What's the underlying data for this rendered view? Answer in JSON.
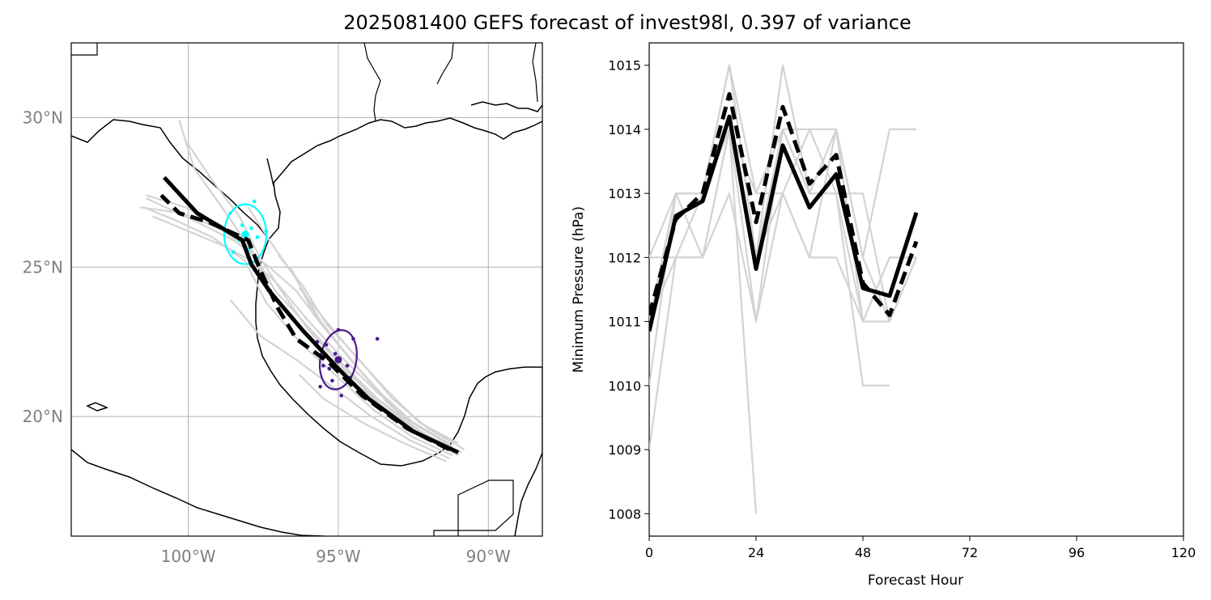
{
  "figure": {
    "title": "2025081400 GEFS forecast of invest98l, 0.397 of variance"
  },
  "chart_data": [
    {
      "type": "scatter",
      "panel": "track-map",
      "xlim": [
        -103.9,
        -88.2
      ],
      "ylim": [
        16.0,
        32.5
      ],
      "lon_ticks": [
        {
          "value": -100,
          "label": "100°W"
        },
        {
          "value": -95,
          "label": "95°W"
        },
        {
          "value": -90,
          "label": "90°W"
        }
      ],
      "lat_ticks": [
        {
          "value": 30,
          "label": "30°N"
        },
        {
          "value": 25,
          "label": "25°N"
        },
        {
          "value": 20,
          "label": "20°N"
        }
      ],
      "grid": true,
      "colors": {
        "member": "#d3d3d3",
        "mean": "#000000",
        "ellipse_early": "#00ffff",
        "ellipse_late": "#4b1a8c",
        "coast": "#000000",
        "grid": "#b0b0b0"
      },
      "members": [
        [
          [
            -91.3,
            19.0
          ],
          [
            -92.5,
            19.6
          ],
          [
            -93.7,
            20.6
          ],
          [
            -95.0,
            21.7
          ],
          [
            -96.1,
            22.8
          ],
          [
            -97.2,
            24.1
          ],
          [
            -97.8,
            25.4
          ],
          [
            -98.6,
            26.6
          ],
          [
            -99.8,
            28.3
          ],
          [
            -100.3,
            29.9
          ]
        ],
        [
          [
            -91.1,
            18.9
          ],
          [
            -92.4,
            19.5
          ],
          [
            -93.6,
            20.4
          ],
          [
            -94.9,
            21.5
          ],
          [
            -96.0,
            22.7
          ],
          [
            -97.2,
            24.1
          ],
          [
            -97.9,
            25.5
          ],
          [
            -98.9,
            26.4
          ],
          [
            -100.1,
            27.0
          ],
          [
            -101.4,
            27.4
          ]
        ],
        [
          [
            -90.9,
            18.8
          ],
          [
            -92.2,
            19.4
          ],
          [
            -93.5,
            20.3
          ],
          [
            -94.8,
            21.6
          ],
          [
            -96.0,
            22.9
          ],
          [
            -96.9,
            24.2
          ],
          [
            -97.6,
            25.3
          ],
          [
            -98.3,
            26.7
          ],
          [
            -99.2,
            27.9
          ],
          [
            -100.0,
            29.1
          ]
        ],
        [
          [
            -91.2,
            18.7
          ],
          [
            -92.5,
            19.3
          ],
          [
            -93.8,
            20.2
          ],
          [
            -95.0,
            21.3
          ],
          [
            -96.2,
            22.4
          ],
          [
            -97.4,
            23.8
          ],
          [
            -98.1,
            25.2
          ],
          [
            -99.2,
            26.0
          ],
          [
            -100.5,
            26.6
          ],
          [
            -101.5,
            27.0
          ]
        ],
        [
          [
            -91.0,
            19.1
          ],
          [
            -92.3,
            19.8
          ],
          [
            -93.4,
            20.9
          ],
          [
            -94.5,
            22.1
          ],
          [
            -95.5,
            23.3
          ],
          [
            -96.3,
            24.3
          ]
        ],
        [
          [
            -91.3,
            18.6
          ],
          [
            -92.6,
            19.2
          ],
          [
            -93.9,
            20.0
          ],
          [
            -95.2,
            21.0
          ],
          [
            -96.4,
            21.9
          ],
          [
            -97.6,
            22.7
          ],
          [
            -98.6,
            23.9
          ]
        ],
        [
          [
            -91.5,
            19.2
          ],
          [
            -92.7,
            19.9
          ],
          [
            -93.8,
            21.0
          ],
          [
            -94.9,
            22.3
          ],
          [
            -95.9,
            23.6
          ],
          [
            -96.6,
            25.0
          ]
        ],
        [
          [
            -90.8,
            18.9
          ],
          [
            -92.0,
            19.6
          ],
          [
            -93.2,
            20.6
          ],
          [
            -94.3,
            21.9
          ],
          [
            -95.4,
            23.1
          ],
          [
            -96.2,
            24.4
          ],
          [
            -97.0,
            25.4
          ]
        ],
        [
          [
            -91.4,
            18.5
          ],
          [
            -92.8,
            19.1
          ],
          [
            -94.2,
            19.8
          ],
          [
            -95.5,
            20.6
          ],
          [
            -96.3,
            21.4
          ]
        ],
        [
          [
            -91.2,
            19.0
          ],
          [
            -92.4,
            19.7
          ],
          [
            -93.5,
            20.7
          ],
          [
            -94.6,
            21.9
          ],
          [
            -95.6,
            23.2
          ],
          [
            -96.4,
            24.6
          ],
          [
            -97.3,
            25.9
          ],
          [
            -98.0,
            27.0
          ]
        ],
        [
          [
            -91.0,
            18.7
          ],
          [
            -92.3,
            19.4
          ],
          [
            -93.6,
            20.4
          ],
          [
            -94.8,
            21.7
          ],
          [
            -95.7,
            22.6
          ],
          [
            -96.2,
            23.2
          ]
        ],
        [
          [
            -91.3,
            19.1
          ],
          [
            -92.5,
            19.8
          ],
          [
            -93.7,
            20.8
          ],
          [
            -94.9,
            22.0
          ],
          [
            -96.0,
            23.2
          ],
          [
            -97.0,
            24.4
          ],
          [
            -97.7,
            25.1
          ],
          [
            -98.8,
            25.7
          ],
          [
            -100.0,
            26.2
          ],
          [
            -101.2,
            26.7
          ]
        ],
        [
          [
            -91.1,
            18.8
          ],
          [
            -92.3,
            19.5
          ],
          [
            -93.4,
            20.5
          ],
          [
            -94.5,
            21.8
          ],
          [
            -95.5,
            23.0
          ],
          [
            -96.4,
            24.2
          ],
          [
            -97.3,
            25.0
          ],
          [
            -98.5,
            25.9
          ],
          [
            -99.9,
            26.6
          ],
          [
            -101.4,
            27.3
          ]
        ],
        [
          [
            -91.2,
            18.9
          ],
          [
            -92.4,
            19.6
          ],
          [
            -93.7,
            20.6
          ],
          [
            -94.9,
            21.8
          ],
          [
            -96.0,
            23.0
          ],
          [
            -97.1,
            24.2
          ],
          [
            -97.9,
            25.6
          ],
          [
            -99.0,
            26.3
          ],
          [
            -100.2,
            26.8
          ],
          [
            -101.6,
            27.0
          ]
        ]
      ],
      "ensemble_mean": [
        [
          -91.0,
          18.8
        ],
        [
          -92.5,
          19.5
        ],
        [
          -94.0,
          20.6
        ],
        [
          -95.0,
          21.6
        ],
        [
          -96.2,
          22.9
        ],
        [
          -97.3,
          24.2
        ],
        [
          -97.9,
          25.1
        ],
        [
          -98.2,
          25.9
        ],
        [
          -99.7,
          26.8
        ],
        [
          -100.8,
          28.0
        ]
      ],
      "deterministic": [
        [
          -91.3,
          18.9
        ],
        [
          -92.7,
          19.6
        ],
        [
          -94.2,
          20.7
        ],
        [
          -95.3,
          21.8
        ],
        [
          -96.4,
          22.6
        ],
        [
          -97.0,
          23.6
        ],
        [
          -97.6,
          24.9
        ],
        [
          -98.0,
          25.9
        ],
        [
          -99.3,
          26.5
        ],
        [
          -100.3,
          26.8
        ],
        [
          -100.9,
          27.4
        ]
      ],
      "ellipses": [
        {
          "lon": -98.1,
          "lat": 26.1,
          "semi_lon": 0.7,
          "semi_lat": 1.0,
          "tilt_deg": 0,
          "color": "#00ffff"
        },
        {
          "lon": -95.0,
          "lat": 21.9,
          "semi_lon": 0.6,
          "semi_lat": 1.0,
          "tilt_deg": 10,
          "color": "#4b1a8c"
        }
      ],
      "members_positions_early": [
        [
          -98.2,
          26.4
        ],
        [
          -97.9,
          26.3
        ],
        [
          -98.6,
          26.8
        ],
        [
          -97.7,
          26.0
        ],
        [
          -98.4,
          26.1
        ],
        [
          -98.0,
          25.6
        ],
        [
          -97.4,
          26.2
        ],
        [
          -98.3,
          25.9
        ],
        [
          -97.8,
          27.2
        ],
        [
          -98.5,
          25.5
        ],
        [
          -98.1,
          26.0
        ]
      ],
      "members_positions_late": [
        [
          -95.0,
          22.9
        ],
        [
          -94.5,
          22.6
        ],
        [
          -95.4,
          22.4
        ],
        [
          -94.8,
          21.4
        ],
        [
          -95.2,
          21.2
        ],
        [
          -95.6,
          21.0
        ],
        [
          -94.9,
          20.7
        ],
        [
          -95.5,
          22.0
        ],
        [
          -94.7,
          21.7
        ],
        [
          -95.1,
          22.1
        ],
        [
          -95.3,
          21.6
        ],
        [
          -94.6,
          21.3
        ],
        [
          -95.7,
          22.5
        ],
        [
          -93.7,
          22.6
        ],
        [
          -95.5,
          21.7
        ]
      ]
    },
    {
      "type": "line",
      "panel": "pressure",
      "xlabel": "Forecast Hour",
      "ylabel": "Minimum Pressure (hPa)",
      "xlim": [
        0,
        120
      ],
      "ylim": [
        1007.65,
        1015.35
      ],
      "xticks": [
        0,
        24,
        48,
        72,
        96,
        120
      ],
      "yticks": [
        1008,
        1009,
        1010,
        1011,
        1012,
        1013,
        1014,
        1015
      ],
      "x": [
        0,
        6,
        12,
        18,
        24,
        30,
        36,
        42,
        48,
        54,
        60
      ],
      "members": [
        [
          1012,
          1013,
          1013,
          1015,
          1013,
          1014,
          1014,
          1014,
          1012,
          1014,
          1014
        ],
        [
          1011,
          1012,
          1012,
          1013,
          1011,
          1013,
          1012,
          1012,
          1011,
          1011,
          1012
        ],
        [
          1010,
          1013,
          1013,
          1015,
          1012,
          1015,
          1013,
          1013,
          1010,
          1010
        ],
        [
          1009,
          1012,
          1012,
          1014,
          1008
        ],
        [
          1011,
          1013,
          1012,
          1014,
          1012,
          1013,
          1012,
          1014,
          1011,
          1012,
          1012
        ],
        [
          1011,
          1013,
          1013,
          1014,
          1011,
          1014,
          1013,
          1014,
          1012,
          1011,
          1012
        ],
        [
          1012,
          1012,
          1013,
          1015,
          1012,
          1014,
          1013,
          1013,
          1011,
          1012
        ],
        [
          1011,
          1013,
          1013,
          1014,
          1013,
          1013,
          1014,
          1013,
          1013,
          1011
        ]
      ],
      "ensemble_mean": [
        1010.85,
        1012.65,
        1012.88,
        1014.2,
        1011.82,
        1013.75,
        1012.78,
        1013.3,
        1011.52,
        1011.4,
        1012.7
      ],
      "deterministic": [
        1011.1,
        1012.6,
        1013.0,
        1014.55,
        1012.55,
        1014.35,
        1013.15,
        1013.6,
        1011.6,
        1011.1,
        1012.25
      ],
      "colors": {
        "member": "#d3d3d3",
        "mean": "#000000"
      }
    }
  ]
}
